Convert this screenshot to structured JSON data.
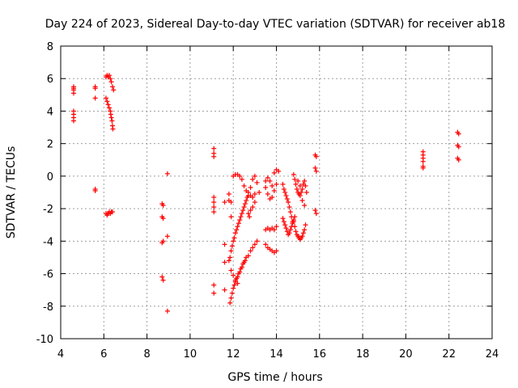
{
  "chart_data": {
    "type": "scatter",
    "title": "Day 224 of 2023, Sidereal Day-to-day VTEC variation (SDTVAR) for receiver ab18",
    "xlabel": "GPS time / hours",
    "ylabel": "SDTVAR / TECUs",
    "xlim": [
      4,
      24
    ],
    "ylim": [
      -10,
      8
    ],
    "xticks": [
      "4",
      "6",
      "8",
      "10",
      "12",
      "14",
      "16",
      "18",
      "20",
      "22",
      "24"
    ],
    "yticks": [
      "-10",
      "-8",
      "-6",
      "-4",
      "-2",
      "0",
      "2",
      "4",
      "6",
      "8"
    ],
    "grid": true,
    "marker": "+",
    "color": "#ff0000",
    "series": [
      {
        "name": "SDTVAR",
        "points": [
          [
            4.6,
            5.5
          ],
          [
            4.6,
            5.4
          ],
          [
            4.6,
            5.3
          ],
          [
            4.6,
            5.1
          ],
          [
            4.6,
            4.0
          ],
          [
            4.6,
            3.8
          ],
          [
            4.6,
            3.6
          ],
          [
            4.6,
            3.4
          ],
          [
            5.6,
            5.5
          ],
          [
            5.6,
            5.4
          ],
          [
            5.6,
            4.8
          ],
          [
            5.6,
            -0.8
          ],
          [
            5.6,
            -0.9
          ],
          [
            6.1,
            6.1
          ],
          [
            6.15,
            6.2
          ],
          [
            6.2,
            6.1
          ],
          [
            6.25,
            6.2
          ],
          [
            6.3,
            6.0
          ],
          [
            6.35,
            5.8
          ],
          [
            6.4,
            5.5
          ],
          [
            6.45,
            5.3
          ],
          [
            6.1,
            4.8
          ],
          [
            6.15,
            4.6
          ],
          [
            6.2,
            4.4
          ],
          [
            6.25,
            4.2
          ],
          [
            6.3,
            4.0
          ],
          [
            6.32,
            3.8
          ],
          [
            6.35,
            3.6
          ],
          [
            6.38,
            3.4
          ],
          [
            6.4,
            3.1
          ],
          [
            6.42,
            2.9
          ],
          [
            6.1,
            -2.3
          ],
          [
            6.15,
            -2.4
          ],
          [
            6.2,
            -2.3
          ],
          [
            6.25,
            -2.2
          ],
          [
            6.3,
            -2.3
          ],
          [
            6.35,
            -2.2
          ],
          [
            6.4,
            -2.2
          ],
          [
            8.7,
            -1.7
          ],
          [
            8.75,
            -1.8
          ],
          [
            8.7,
            -2.5
          ],
          [
            8.75,
            -2.6
          ],
          [
            8.7,
            -4.1
          ],
          [
            8.75,
            -4.0
          ],
          [
            8.7,
            -6.2
          ],
          [
            8.75,
            -6.4
          ],
          [
            8.95,
            0.15
          ],
          [
            8.95,
            -3.7
          ],
          [
            8.95,
            -8.3
          ],
          [
            11.1,
            1.7
          ],
          [
            11.1,
            1.4
          ],
          [
            11.1,
            1.2
          ],
          [
            11.1,
            -1.3
          ],
          [
            11.1,
            -1.6
          ],
          [
            11.1,
            -1.9
          ],
          [
            11.1,
            -2.2
          ],
          [
            11.1,
            -6.7
          ],
          [
            11.1,
            -7.2
          ],
          [
            11.6,
            -1.6
          ],
          [
            11.6,
            -4.2
          ],
          [
            11.6,
            -5.3
          ],
          [
            11.6,
            -7.0
          ],
          [
            11.8,
            -1.1
          ],
          [
            11.8,
            -1.5
          ],
          [
            11.9,
            -1.6
          ],
          [
            11.9,
            -2.5
          ],
          [
            11.85,
            -7.8
          ],
          [
            11.9,
            -7.5
          ],
          [
            11.95,
            -7.2
          ],
          [
            12.0,
            -6.9
          ],
          [
            12.05,
            -6.7
          ],
          [
            12.1,
            -6.5
          ],
          [
            12.15,
            -6.3
          ],
          [
            12.2,
            -6.2
          ],
          [
            12.25,
            -6.0
          ],
          [
            12.3,
            -5.9
          ],
          [
            12.35,
            -5.7
          ],
          [
            12.4,
            -5.6
          ],
          [
            12.45,
            -5.4
          ],
          [
            12.5,
            -5.3
          ],
          [
            12.55,
            -5.2
          ],
          [
            12.6,
            -5.0
          ],
          [
            12.7,
            -4.9
          ],
          [
            12.8,
            -4.6
          ],
          [
            12.9,
            -4.4
          ],
          [
            13.0,
            -4.2
          ],
          [
            13.1,
            -4.0
          ],
          [
            11.8,
            -5.2
          ],
          [
            11.85,
            -5.0
          ],
          [
            11.9,
            -4.6
          ],
          [
            11.95,
            -4.3
          ],
          [
            12.0,
            -4.0
          ],
          [
            12.05,
            -3.8
          ],
          [
            12.1,
            -3.5
          ],
          [
            12.15,
            -3.3
          ],
          [
            12.2,
            -3.1
          ],
          [
            12.25,
            -2.9
          ],
          [
            12.3,
            -2.7
          ],
          [
            12.35,
            -2.5
          ],
          [
            12.4,
            -2.3
          ],
          [
            12.45,
            -2.1
          ],
          [
            12.5,
            -1.9
          ],
          [
            12.55,
            -1.7
          ],
          [
            12.6,
            -1.5
          ],
          [
            12.65,
            -1.3
          ],
          [
            12.7,
            -1.2
          ],
          [
            11.9,
            -5.8
          ],
          [
            12.0,
            -6.1
          ],
          [
            12.1,
            -6.4
          ],
          [
            12.2,
            -6.6
          ],
          [
            12.0,
            0.0
          ],
          [
            12.1,
            0.1
          ],
          [
            12.2,
            0.1
          ],
          [
            12.3,
            0.0
          ],
          [
            12.4,
            -0.2
          ],
          [
            12.5,
            -0.6
          ],
          [
            12.6,
            -0.9
          ],
          [
            12.7,
            -1.0
          ],
          [
            12.8,
            -1.2
          ],
          [
            12.9,
            -1.3
          ],
          [
            13.0,
            -1.1
          ],
          [
            12.8,
            -0.7
          ],
          [
            12.9,
            -0.2
          ],
          [
            13.0,
            0.0
          ],
          [
            13.1,
            -0.4
          ],
          [
            13.2,
            -1.0
          ],
          [
            12.7,
            -2.3
          ],
          [
            12.8,
            -2.1
          ],
          [
            12.9,
            -1.9
          ],
          [
            13.0,
            -1.6
          ],
          [
            12.75,
            -2.5
          ],
          [
            13.5,
            -0.3
          ],
          [
            13.6,
            -0.1
          ],
          [
            13.7,
            -0.3
          ],
          [
            13.8,
            -0.6
          ],
          [
            13.9,
            0.2
          ],
          [
            14.0,
            0.4
          ],
          [
            14.1,
            0.3
          ],
          [
            13.5,
            -0.7
          ],
          [
            13.6,
            -1.1
          ],
          [
            13.7,
            -1.4
          ],
          [
            13.8,
            -1.3
          ],
          [
            13.9,
            -0.9
          ],
          [
            14.0,
            -0.5
          ],
          [
            13.5,
            -3.3
          ],
          [
            13.6,
            -3.2
          ],
          [
            13.7,
            -3.3
          ],
          [
            13.8,
            -3.2
          ],
          [
            13.9,
            -3.3
          ],
          [
            14.0,
            -3.1
          ],
          [
            13.5,
            -4.2
          ],
          [
            13.6,
            -4.4
          ],
          [
            13.7,
            -4.5
          ],
          [
            13.8,
            -4.6
          ],
          [
            13.9,
            -4.7
          ],
          [
            14.0,
            -4.6
          ],
          [
            14.3,
            -0.5
          ],
          [
            14.35,
            -0.8
          ],
          [
            14.4,
            -1.0
          ],
          [
            14.45,
            -1.2
          ],
          [
            14.5,
            -1.4
          ],
          [
            14.55,
            -1.6
          ],
          [
            14.6,
            -1.9
          ],
          [
            14.65,
            -2.2
          ],
          [
            14.7,
            -2.5
          ],
          [
            14.75,
            -2.8
          ],
          [
            14.3,
            -2.6
          ],
          [
            14.35,
            -2.8
          ],
          [
            14.4,
            -3.0
          ],
          [
            14.45,
            -3.2
          ],
          [
            14.5,
            -3.4
          ],
          [
            14.55,
            -3.6
          ],
          [
            14.6,
            -3.5
          ],
          [
            14.65,
            -3.3
          ],
          [
            14.7,
            -3.1
          ],
          [
            14.75,
            -2.9
          ],
          [
            14.8,
            -2.7
          ],
          [
            14.85,
            -2.5
          ],
          [
            14.8,
            -2.8
          ],
          [
            14.85,
            -3.1
          ],
          [
            14.9,
            -3.4
          ],
          [
            14.95,
            -3.6
          ],
          [
            15.0,
            -3.7
          ],
          [
            15.05,
            -3.8
          ],
          [
            15.1,
            -3.9
          ],
          [
            15.15,
            -3.8
          ],
          [
            15.2,
            -3.7
          ],
          [
            15.25,
            -3.5
          ],
          [
            15.3,
            -3.3
          ],
          [
            15.35,
            -3.0
          ],
          [
            14.8,
            0.1
          ],
          [
            14.85,
            -0.2
          ],
          [
            14.9,
            -0.5
          ],
          [
            14.95,
            -0.8
          ],
          [
            15.0,
            -1.0
          ],
          [
            15.05,
            -1.1
          ],
          [
            15.1,
            -1.2
          ],
          [
            15.15,
            -1.0
          ],
          [
            15.2,
            -0.8
          ],
          [
            15.25,
            -0.5
          ],
          [
            15.3,
            -0.3
          ],
          [
            15.35,
            -0.6
          ],
          [
            15.4,
            -1.0
          ],
          [
            15.0,
            -0.3
          ],
          [
            15.1,
            -0.6
          ],
          [
            15.2,
            -1.5
          ],
          [
            15.3,
            -1.8
          ],
          [
            15.8,
            1.3
          ],
          [
            15.85,
            1.2
          ],
          [
            15.8,
            0.5
          ],
          [
            15.85,
            0.3
          ],
          [
            15.8,
            -2.1
          ],
          [
            15.85,
            -2.3
          ],
          [
            20.8,
            1.5
          ],
          [
            20.8,
            1.3
          ],
          [
            20.8,
            1.1
          ],
          [
            20.8,
            0.9
          ],
          [
            20.8,
            0.6
          ],
          [
            20.8,
            0.5
          ],
          [
            22.4,
            2.7
          ],
          [
            22.45,
            2.6
          ],
          [
            22.4,
            1.9
          ],
          [
            22.45,
            1.8
          ],
          [
            22.4,
            1.1
          ],
          [
            22.45,
            1.0
          ]
        ]
      }
    ]
  }
}
